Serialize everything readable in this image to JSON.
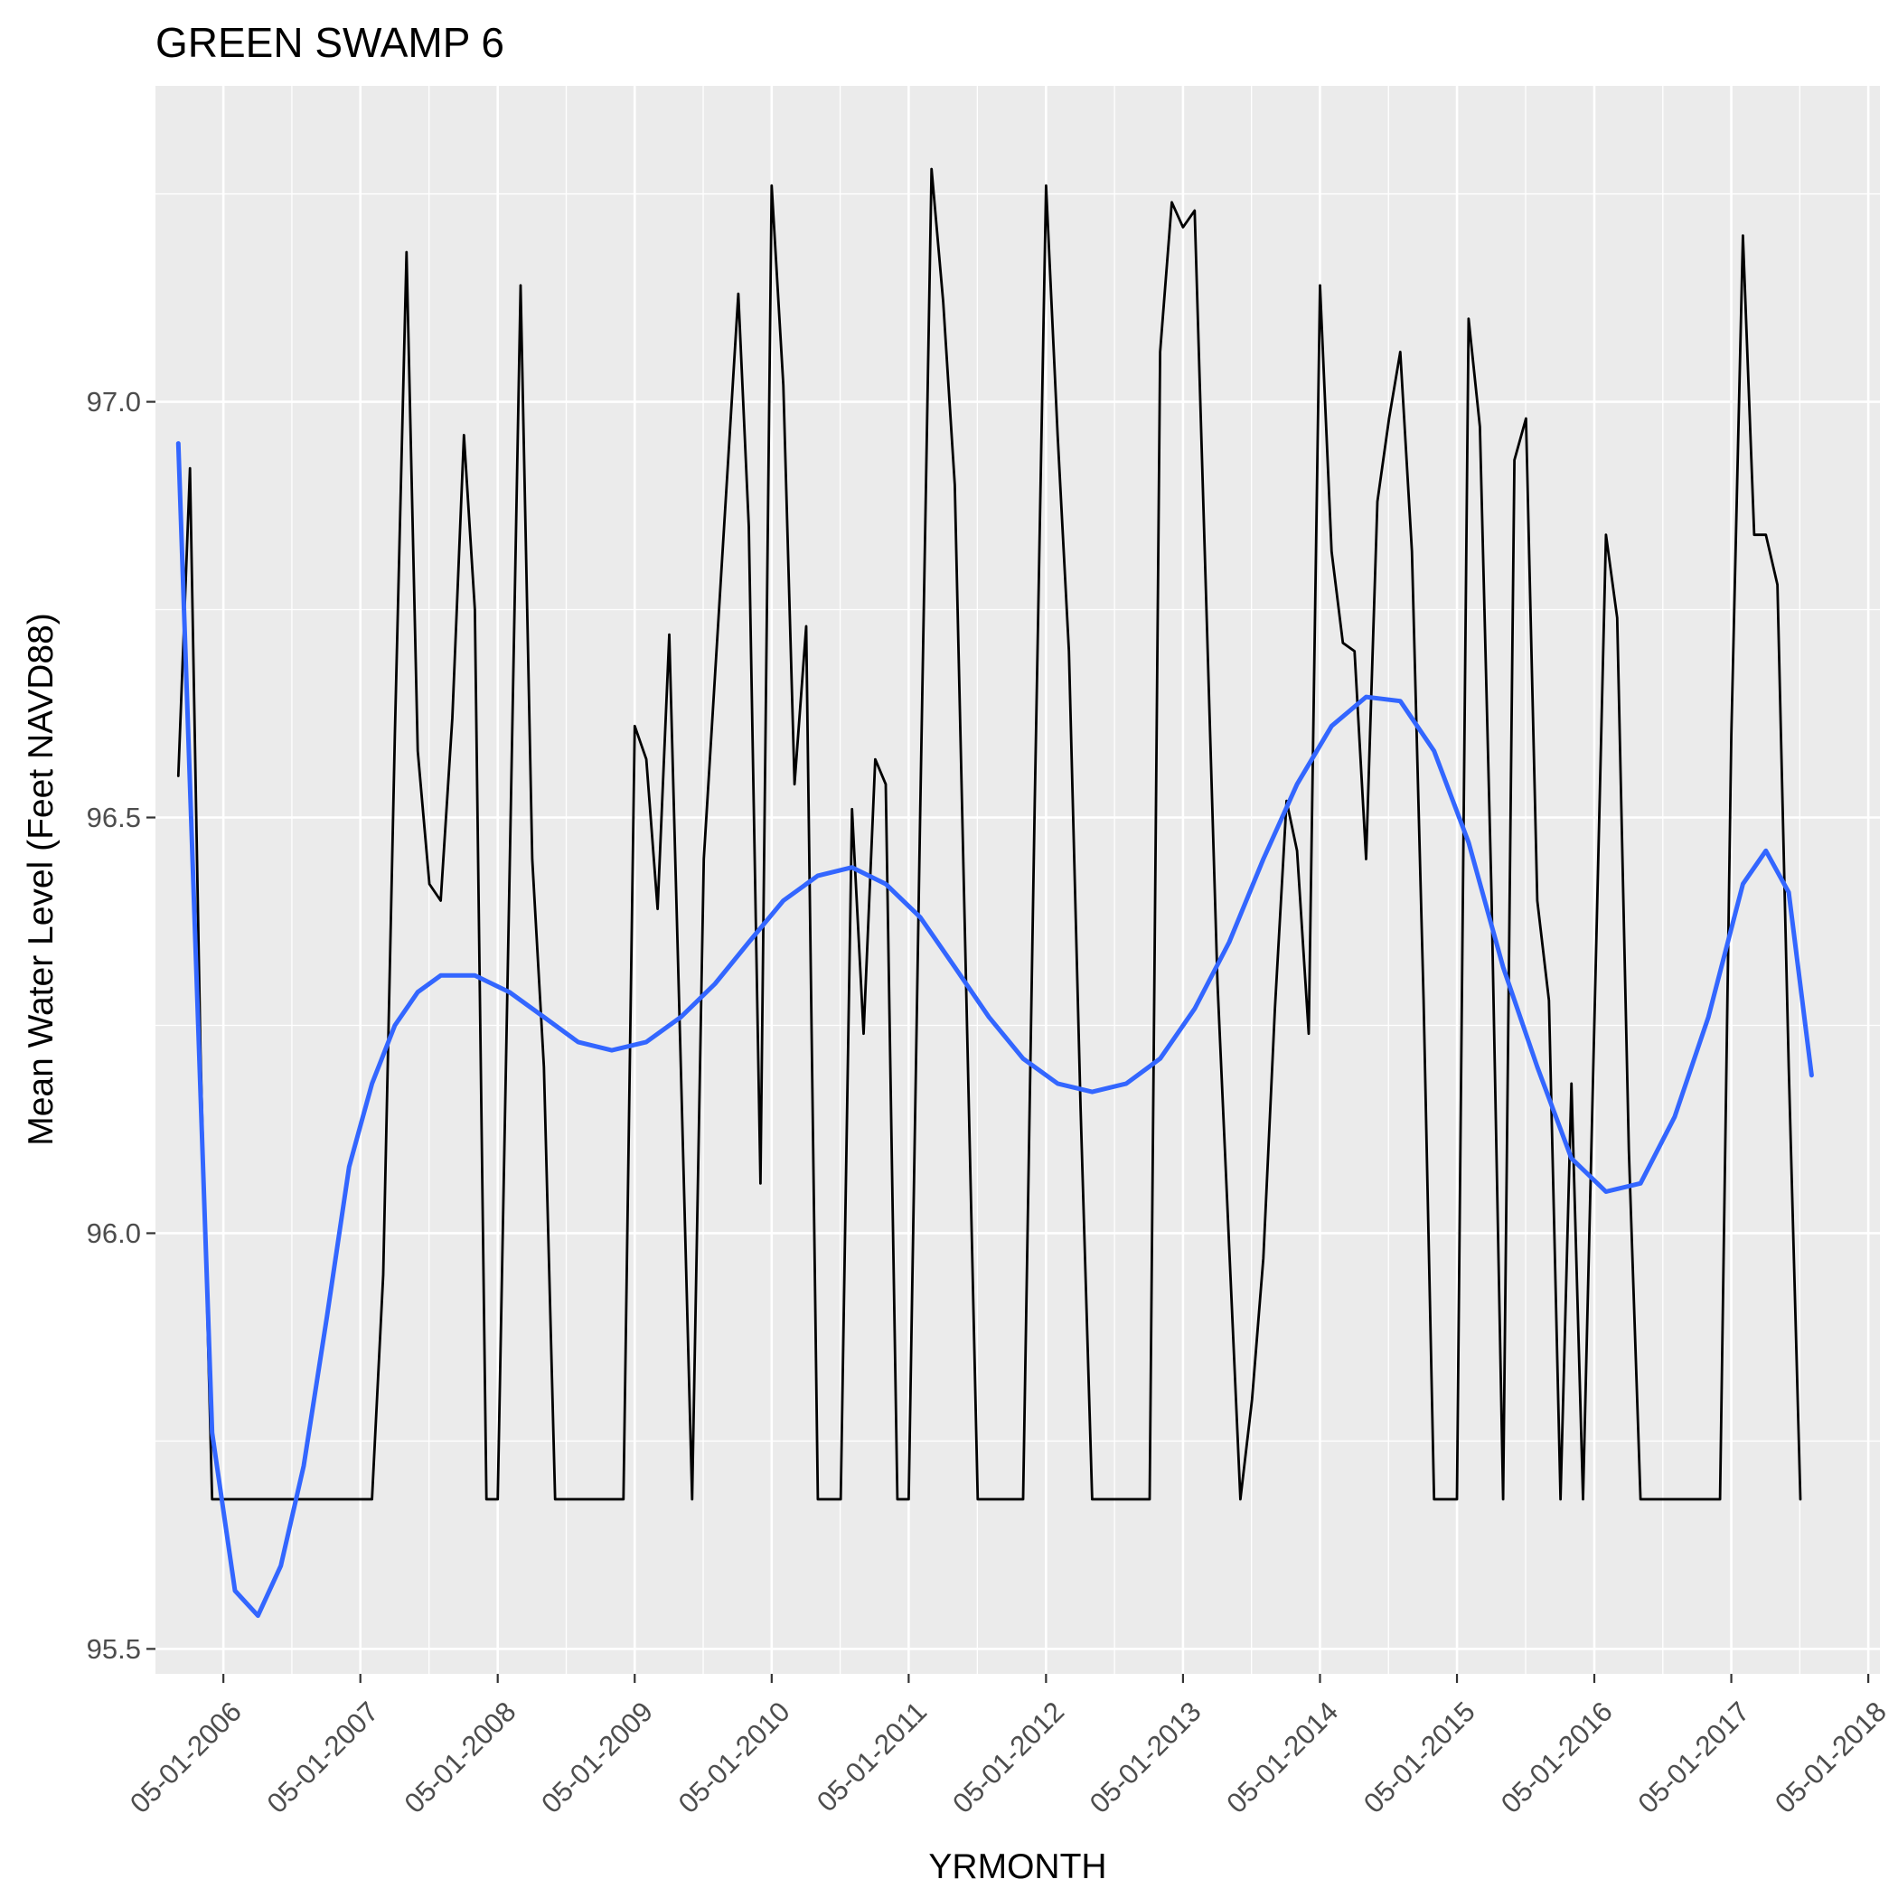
{
  "chart_data": {
    "type": "line",
    "title": "GREEN SWAMP 6",
    "xlabel": "YRMONTH",
    "ylabel": "Mean Water Level (Feet NAVD88)",
    "x_type": "date",
    "x_ticks": [
      "05-01-2006",
      "05-01-2007",
      "05-01-2008",
      "05-01-2009",
      "05-01-2010",
      "05-01-2011",
      "05-01-2012",
      "05-01-2013",
      "05-01-2014",
      "05-01-2015",
      "05-01-2016",
      "05-01-2017",
      "05-01-2018"
    ],
    "xlim": [
      "2005-11-01",
      "2018-06-01"
    ],
    "y_ticks": [
      95.5,
      96.0,
      96.5,
      97.0
    ],
    "ylim": [
      95.47,
      97.38
    ],
    "grid": true,
    "background": "#ebebeb",
    "series": [
      {
        "kind": "observed",
        "color": "#000000",
        "points": [
          [
            "2006-01-01",
            96.55
          ],
          [
            "2006-02-01",
            96.92
          ],
          [
            "2006-03-01",
            96.22
          ],
          [
            "2006-04-01",
            95.68
          ],
          [
            "2006-05-01",
            95.68
          ],
          [
            "2007-06-01",
            95.68
          ],
          [
            "2007-07-01",
            95.95
          ],
          [
            "2007-08-01",
            96.6
          ],
          [
            "2007-09-01",
            97.18
          ],
          [
            "2007-10-01",
            96.58
          ],
          [
            "2007-11-01",
            96.42
          ],
          [
            "2007-12-01",
            96.4
          ],
          [
            "2008-01-01",
            96.62
          ],
          [
            "2008-02-01",
            96.96
          ],
          [
            "2008-03-01",
            96.75
          ],
          [
            "2008-04-01",
            95.68
          ],
          [
            "2008-05-01",
            95.68
          ],
          [
            "2008-06-01",
            96.42
          ],
          [
            "2008-07-01",
            97.14
          ],
          [
            "2008-08-01",
            96.45
          ],
          [
            "2008-09-01",
            96.2
          ],
          [
            "2008-10-01",
            95.68
          ],
          [
            "2009-04-01",
            95.68
          ],
          [
            "2009-05-01",
            96.61
          ],
          [
            "2009-06-01",
            96.57
          ],
          [
            "2009-07-01",
            96.39
          ],
          [
            "2009-08-01",
            96.72
          ],
          [
            "2009-09-01",
            96.2
          ],
          [
            "2009-10-01",
            95.68
          ],
          [
            "2009-11-01",
            96.45
          ],
          [
            "2010-02-01",
            97.13
          ],
          [
            "2010-03-01",
            96.85
          ],
          [
            "2010-04-01",
            96.06
          ],
          [
            "2010-05-01",
            97.26
          ],
          [
            "2010-06-01",
            97.02
          ],
          [
            "2010-07-01",
            96.54
          ],
          [
            "2010-08-01",
            96.73
          ],
          [
            "2010-09-01",
            95.68
          ],
          [
            "2010-11-01",
            95.68
          ],
          [
            "2010-12-01",
            96.51
          ],
          [
            "2011-01-01",
            96.24
          ],
          [
            "2011-02-01",
            96.57
          ],
          [
            "2011-03-01",
            96.54
          ],
          [
            "2011-04-01",
            95.68
          ],
          [
            "2011-05-01",
            95.68
          ],
          [
            "2011-06-01",
            96.51
          ],
          [
            "2011-07-01",
            97.28
          ],
          [
            "2011-08-01",
            97.12
          ],
          [
            "2011-09-01",
            96.9
          ],
          [
            "2011-11-01",
            95.68
          ],
          [
            "2012-03-01",
            95.68
          ],
          [
            "2012-04-01",
            96.52
          ],
          [
            "2012-05-01",
            97.26
          ],
          [
            "2012-06-01",
            96.96
          ],
          [
            "2012-07-01",
            96.7
          ],
          [
            "2012-08-01",
            96.15
          ],
          [
            "2012-09-01",
            95.68
          ],
          [
            "2013-02-01",
            95.68
          ],
          [
            "2013-03-01",
            97.06
          ],
          [
            "2013-04-01",
            97.24
          ],
          [
            "2013-05-01",
            97.21
          ],
          [
            "2013-06-01",
            97.23
          ],
          [
            "2013-08-01",
            96.3
          ],
          [
            "2013-10-01",
            95.68
          ],
          [
            "2013-11-01",
            95.8
          ],
          [
            "2013-12-01",
            95.97
          ],
          [
            "2014-01-01",
            96.27
          ],
          [
            "2014-02-01",
            96.52
          ],
          [
            "2014-03-01",
            96.46
          ],
          [
            "2014-04-01",
            96.24
          ],
          [
            "2014-05-01",
            97.14
          ],
          [
            "2014-06-01",
            96.82
          ],
          [
            "2014-07-01",
            96.71
          ],
          [
            "2014-08-01",
            96.7
          ],
          [
            "2014-09-01",
            96.45
          ],
          [
            "2014-10-01",
            96.88
          ],
          [
            "2014-11-01",
            96.98
          ],
          [
            "2014-12-01",
            97.06
          ],
          [
            "2015-01-01",
            96.82
          ],
          [
            "2015-02-01",
            96.28
          ],
          [
            "2015-03-01",
            95.68
          ],
          [
            "2015-05-01",
            95.68
          ],
          [
            "2015-06-01",
            97.1
          ],
          [
            "2015-07-01",
            96.97
          ],
          [
            "2015-08-01",
            96.41
          ],
          [
            "2015-09-01",
            95.68
          ],
          [
            "2015-10-01",
            96.93
          ],
          [
            "2015-11-01",
            96.98
          ],
          [
            "2015-12-01",
            96.4
          ],
          [
            "2016-01-01",
            96.28
          ],
          [
            "2016-02-01",
            95.68
          ],
          [
            "2016-03-01",
            96.18
          ],
          [
            "2016-04-01",
            95.68
          ],
          [
            "2016-06-01",
            96.84
          ],
          [
            "2016-07-01",
            96.74
          ],
          [
            "2016-08-01",
            96.1
          ],
          [
            "2016-09-01",
            95.68
          ],
          [
            "2017-04-01",
            95.68
          ],
          [
            "2017-05-01",
            96.6
          ],
          [
            "2017-06-01",
            97.2
          ],
          [
            "2017-07-01",
            96.84
          ],
          [
            "2017-08-01",
            96.84
          ],
          [
            "2017-09-01",
            96.78
          ],
          [
            "2017-10-01",
            96.2
          ],
          [
            "2017-11-01",
            95.68
          ]
        ]
      },
      {
        "kind": "smoothed",
        "color": "#3366ff",
        "points": [
          [
            "2006-01-01",
            96.95
          ],
          [
            "2006-04-01",
            95.76
          ],
          [
            "2006-06-01",
            95.57
          ],
          [
            "2006-08-01",
            95.54
          ],
          [
            "2006-10-01",
            95.6
          ],
          [
            "2006-12-01",
            95.72
          ],
          [
            "2007-02-01",
            95.9
          ],
          [
            "2007-04-01",
            96.08
          ],
          [
            "2007-06-01",
            96.18
          ],
          [
            "2007-08-01",
            96.25
          ],
          [
            "2007-10-01",
            96.29
          ],
          [
            "2007-12-01",
            96.31
          ],
          [
            "2008-03-01",
            96.31
          ],
          [
            "2008-06-01",
            96.29
          ],
          [
            "2008-09-01",
            96.26
          ],
          [
            "2008-12-01",
            96.23
          ],
          [
            "2009-03-01",
            96.22
          ],
          [
            "2009-06-01",
            96.23
          ],
          [
            "2009-09-01",
            96.26
          ],
          [
            "2009-12-01",
            96.3
          ],
          [
            "2010-03-01",
            96.35
          ],
          [
            "2010-06-01",
            96.4
          ],
          [
            "2010-09-01",
            96.43
          ],
          [
            "2010-12-01",
            96.44
          ],
          [
            "2011-03-01",
            96.42
          ],
          [
            "2011-06-01",
            96.38
          ],
          [
            "2011-09-01",
            96.32
          ],
          [
            "2011-12-01",
            96.26
          ],
          [
            "2012-03-01",
            96.21
          ],
          [
            "2012-06-01",
            96.18
          ],
          [
            "2012-09-01",
            96.17
          ],
          [
            "2012-12-01",
            96.18
          ],
          [
            "2013-03-01",
            96.21
          ],
          [
            "2013-06-01",
            96.27
          ],
          [
            "2013-09-01",
            96.35
          ],
          [
            "2013-12-01",
            96.45
          ],
          [
            "2014-03-01",
            96.54
          ],
          [
            "2014-06-01",
            96.61
          ],
          [
            "2014-09-01",
            96.645
          ],
          [
            "2014-12-01",
            96.64
          ],
          [
            "2015-03-01",
            96.58
          ],
          [
            "2015-06-01",
            96.47
          ],
          [
            "2015-09-01",
            96.32
          ],
          [
            "2015-12-01",
            96.2
          ],
          [
            "2016-03-01",
            96.09
          ],
          [
            "2016-06-01",
            96.05
          ],
          [
            "2016-09-01",
            96.06
          ],
          [
            "2016-12-01",
            96.14
          ],
          [
            "2017-03-01",
            96.26
          ],
          [
            "2017-06-01",
            96.42
          ],
          [
            "2017-08-01",
            96.46
          ],
          [
            "2017-10-01",
            96.41
          ],
          [
            "2017-12-01",
            96.19
          ]
        ]
      }
    ]
  }
}
